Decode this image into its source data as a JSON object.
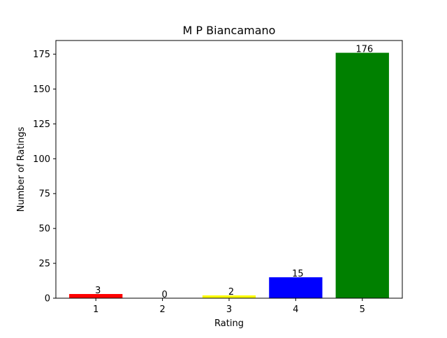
{
  "chart_data": {
    "type": "bar",
    "title": "M P Biancamano",
    "xlabel": "Rating",
    "ylabel": "Number of Ratings",
    "categories": [
      "1",
      "2",
      "3",
      "4",
      "5"
    ],
    "values": [
      3,
      0,
      2,
      15,
      176
    ],
    "value_labels": [
      "3",
      "0",
      "2",
      "15",
      "176"
    ],
    "bar_colors": [
      "#ff0000",
      "#ff7f0e",
      "#ffff00",
      "#0000ff",
      "#008000"
    ],
    "ylim": [
      0,
      184.8
    ],
    "y_ticks": [
      0,
      25,
      50,
      75,
      100,
      125,
      150,
      175
    ],
    "y_tick_labels": [
      "0",
      "25",
      "50",
      "75",
      "100",
      "125",
      "150",
      "175"
    ],
    "grid": false,
    "legend": "none"
  }
}
